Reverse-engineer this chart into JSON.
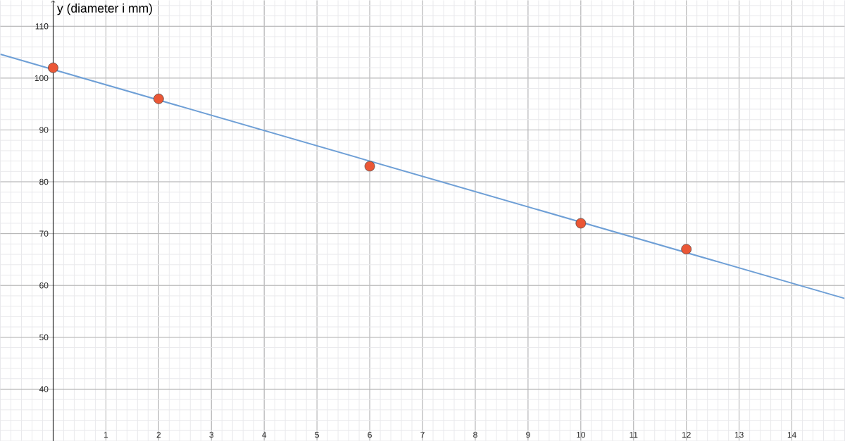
{
  "chart_data": {
    "type": "scatter",
    "ylabel": "y (diameter i mm)",
    "xlim": [
      -1,
      15
    ],
    "ylim": [
      30,
      115
    ],
    "xticks": [
      1,
      2,
      3,
      4,
      5,
      6,
      7,
      8,
      9,
      10,
      11,
      12,
      13,
      14
    ],
    "yticks": [
      40,
      50,
      60,
      70,
      80,
      90,
      100,
      110
    ],
    "grid": true,
    "marker": "circle",
    "series": [
      {
        "color": "#eb5736",
        "x": [
          0,
          2,
          6,
          10,
          12
        ],
        "values": [
          102,
          96,
          83,
          72,
          67
        ]
      },
      {
        "type": "line",
        "color": "#6e9fd6",
        "marker": "none",
        "x": [
          -1,
          15
        ],
        "values": [
          104.6,
          57.5
        ]
      }
    ]
  }
}
